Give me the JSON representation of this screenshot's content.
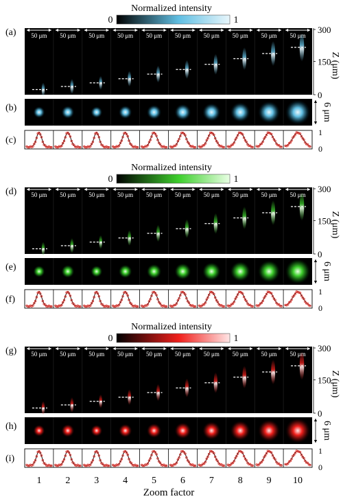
{
  "colorbar": {
    "title": "Normalized intensity",
    "min_label": "0",
    "max_label": "1"
  },
  "scale_label": "50 μm",
  "z_axis": {
    "label": "Z (μm)",
    "ticks": [
      "300",
      "150",
      "0"
    ]
  },
  "lateral_scale_label": "6 μm",
  "profile_ticks": [
    "1",
    "0"
  ],
  "x_axis": {
    "label": "Zoom factor",
    "ticks": [
      "1",
      "2",
      "3",
      "4",
      "5",
      "6",
      "7",
      "8",
      "9",
      "10"
    ]
  },
  "panel_letters": [
    "(a)",
    "(b)",
    "(c)",
    "(d)",
    "(e)",
    "(f)",
    "(g)",
    "(h)",
    "(i)"
  ],
  "groups": [
    {
      "color": "blue",
      "hi": "#e8f6fb",
      "mid": "#61bfe3",
      "lo": "#0a2935",
      "letters": [
        "(a)",
        "(b)",
        "(c)"
      ]
    },
    {
      "color": "green",
      "hi": "#e9ffe4",
      "mid": "#3ecf2d",
      "lo": "#0a3a0a",
      "letters": [
        "(d)",
        "(e)",
        "(f)"
      ]
    },
    {
      "color": "red",
      "hi": "#ffe6e6",
      "mid": "#f0201c",
      "lo": "#3d0605",
      "letters": [
        "(g)",
        "(h)",
        "(i)"
      ]
    }
  ],
  "focus_depth_fraction": [
    0.02,
    0.08,
    0.15,
    0.23,
    0.32,
    0.41,
    0.51,
    0.62,
    0.72,
    0.84
  ],
  "spot_size_relative": [
    0.3,
    0.36,
    0.3,
    0.38,
    0.44,
    0.52,
    0.6,
    0.68,
    0.78,
    0.92
  ]
}
